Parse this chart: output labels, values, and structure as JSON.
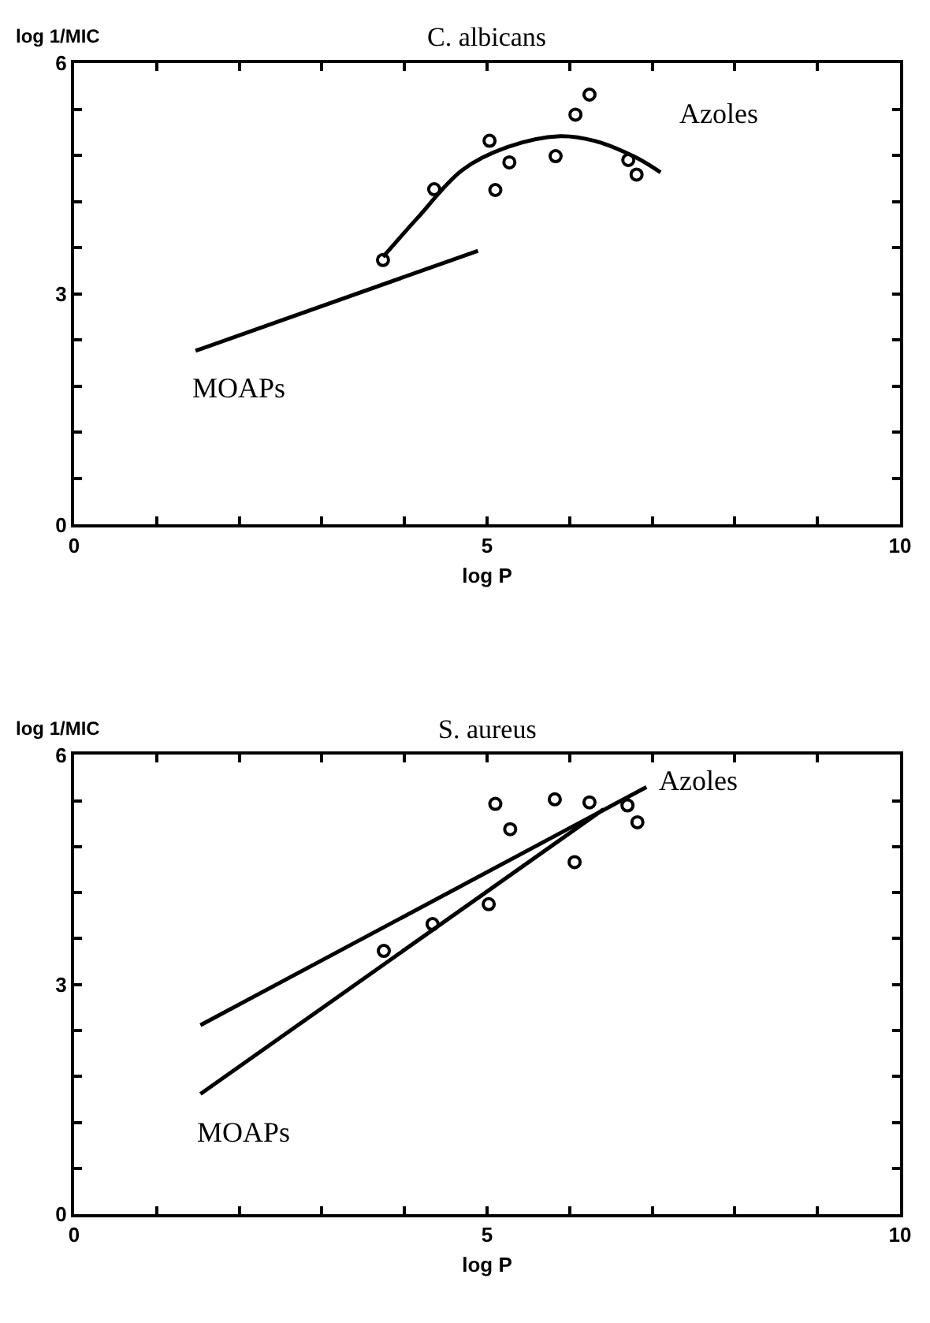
{
  "chart_data": [
    {
      "type": "scatter",
      "title": "C. albicans",
      "xlabel": "log P",
      "ylabel": "log 1/MIC",
      "xlim": [
        0,
        10
      ],
      "ylim": [
        0,
        6
      ],
      "xticks": [
        0,
        {
          "value": 1,
          "label": null
        },
        {
          "value": 2,
          "label": null
        },
        {
          "value": 3,
          "label": null
        },
        {
          "value": 4,
          "label": null
        },
        5,
        {
          "value": 6,
          "label": null
        },
        {
          "value": 7,
          "label": null
        },
        {
          "value": 8,
          "label": null
        },
        {
          "value": 9,
          "label": null
        },
        10
      ],
      "yticks": [
        0,
        {
          "value": 0.6,
          "label": null
        },
        {
          "value": 1.2,
          "label": null
        },
        {
          "value": 1.8,
          "label": null
        },
        {
          "value": 2.4,
          "label": null
        },
        3,
        {
          "value": 3.6,
          "label": null
        },
        {
          "value": 4.2,
          "label": null
        },
        {
          "value": 4.8,
          "label": null
        },
        {
          "value": 5.4,
          "label": null
        },
        6
      ],
      "series": [
        {
          "marker": "circle",
          "color": "#000000",
          "x": [
            3.74,
            4.36,
            5.03,
            5.1,
            5.27,
            5.83,
            6.07,
            6.24,
            6.71,
            6.81
          ],
          "values": [
            3.44,
            4.36,
            4.99,
            4.35,
            4.71,
            4.79,
            5.33,
            5.59,
            4.74,
            4.55
          ]
        },
        {
          "type": "line",
          "marker": "none",
          "name": "Azoles",
          "color": "#000000",
          "x": [
            3.74,
            4.16,
            4.7,
            5.25,
            5.88,
            6.3,
            6.79,
            7.1
          ],
          "values": [
            3.48,
            3.99,
            4.61,
            4.91,
            5.05,
            4.99,
            4.78,
            4.58
          ]
        },
        {
          "type": "line",
          "marker": "none",
          "name": "MOAPs",
          "color": "#000000",
          "x": [
            1.47,
            4.89
          ],
          "values": [
            2.26,
            3.56
          ]
        }
      ]
    },
    {
      "type": "scatter",
      "title": "S. aureus",
      "xlabel": "log P",
      "ylabel": "log 1/MIC",
      "xlim": [
        0,
        10
      ],
      "ylim": [
        0,
        6
      ],
      "xticks": [
        0,
        {
          "value": 1,
          "label": null
        },
        {
          "value": 2,
          "label": null
        },
        {
          "value": 3,
          "label": null
        },
        {
          "value": 4,
          "label": null
        },
        5,
        {
          "value": 6,
          "label": null
        },
        {
          "value": 7,
          "label": null
        },
        {
          "value": 8,
          "label": null
        },
        {
          "value": 9,
          "label": null
        },
        10
      ],
      "yticks": [
        0,
        {
          "value": 0.6,
          "label": null
        },
        {
          "value": 1.2,
          "label": null
        },
        {
          "value": 1.8,
          "label": null
        },
        {
          "value": 2.4,
          "label": null
        },
        3,
        {
          "value": 3.6,
          "label": null
        },
        {
          "value": 4.2,
          "label": null
        },
        {
          "value": 4.8,
          "label": null
        },
        {
          "value": 5.4,
          "label": null
        },
        6
      ],
      "series": [
        {
          "marker": "circle",
          "color": "#000000",
          "x": [
            3.75,
            4.34,
            5.02,
            5.1,
            5.28,
            5.82,
            6.06,
            6.24,
            6.7,
            6.82
          ],
          "values": [
            3.44,
            3.79,
            4.05,
            5.36,
            5.03,
            5.42,
            4.6,
            5.38,
            5.34,
            5.12
          ]
        },
        {
          "type": "line",
          "marker": "none",
          "name": "Azoles",
          "color": "#000000",
          "x": [
            1.53,
            6.93
          ],
          "values": [
            2.47,
            5.58
          ]
        },
        {
          "type": "line",
          "marker": "none",
          "name": "MOAPs",
          "color": "#000000",
          "x": [
            1.53,
            6.41
          ],
          "values": [
            1.57,
            5.29
          ]
        }
      ]
    }
  ]
}
